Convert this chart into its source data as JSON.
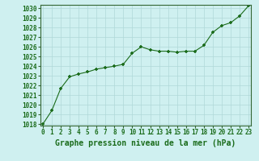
{
  "x": [
    0,
    1,
    2,
    3,
    4,
    5,
    6,
    7,
    8,
    9,
    10,
    11,
    12,
    13,
    14,
    15,
    16,
    17,
    18,
    19,
    20,
    21,
    22,
    23
  ],
  "y": [
    1018.0,
    1019.4,
    1021.7,
    1022.9,
    1023.2,
    1023.4,
    1023.7,
    1023.85,
    1024.0,
    1024.2,
    1025.35,
    1026.0,
    1025.7,
    1025.55,
    1025.55,
    1025.45,
    1025.55,
    1025.55,
    1026.15,
    1027.5,
    1028.2,
    1028.5,
    1029.2,
    1030.25
  ],
  "xlim": [
    0,
    23
  ],
  "ylim": [
    1018,
    1030
  ],
  "yticks": [
    1018,
    1019,
    1020,
    1021,
    1022,
    1023,
    1024,
    1025,
    1026,
    1027,
    1028,
    1029,
    1030
  ],
  "xticks": [
    0,
    1,
    2,
    3,
    4,
    5,
    6,
    7,
    8,
    9,
    10,
    11,
    12,
    13,
    14,
    15,
    16,
    17,
    18,
    19,
    20,
    21,
    22,
    23
  ],
  "line_color": "#1a6b1a",
  "marker": "+",
  "marker_size": 3.5,
  "marker_edge_width": 1.2,
  "background_color": "#cff0f0",
  "grid_color": "#b0d8d8",
  "xlabel": "Graphe pression niveau de la mer (hPa)",
  "xlabel_fontsize": 7,
  "tick_fontsize": 5.5,
  "line_width": 0.8,
  "spine_color": "#336633"
}
